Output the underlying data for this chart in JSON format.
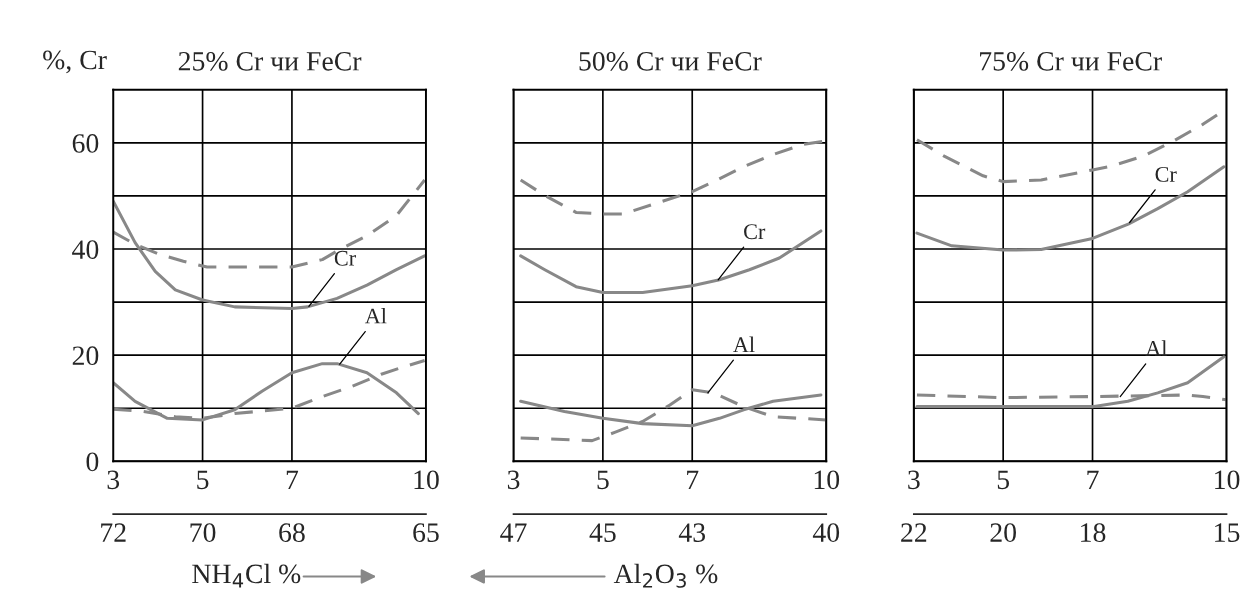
{
  "chart_data": [
    {
      "type": "line",
      "title": "25% Cr чи FeCr",
      "ylabel": "%, Cr",
      "xlabel": "NH$_{4}$Cl %",
      "xlim": [
        3,
        10
      ],
      "xticks": [
        3,
        5,
        7,
        10
      ],
      "x2lim": [
        72,
        65
      ],
      "x2ticks": [
        72,
        70,
        68,
        65
      ],
      "ylim": [
        0,
        70
      ],
      "yticks": [
        0,
        {
          "value": 10,
          "label": null
        },
        20,
        {
          "value": 30,
          "label": null
        },
        40,
        {
          "value": 50,
          "label": null
        },
        60
      ],
      "grid": true,
      "legend": false,
      "series": [
        {
          "color": "#888888",
          "line_style": "solid",
          "x": [
            3,
            3.49,
            3.94,
            4.39,
            5,
            5.72,
            7,
            7.35,
            8.01,
            8.68,
            9.34,
            9.97
          ],
          "values": [
            49,
            41.2,
            35.8,
            32.3,
            30.4,
            29.1,
            28.8,
            29.1,
            30.7,
            33.2,
            36.1,
            38.7
          ]
        },
        {
          "color": "#888888",
          "line_style": "dashed",
          "x": [
            3,
            3.49,
            4.03,
            4.57,
            5.1,
            6.15,
            7,
            7.68,
            8.07,
            8.68,
            9.34,
            9.97
          ],
          "values": [
            43.2,
            40.9,
            39,
            37.7,
            36.6,
            36.6,
            36.6,
            38,
            39.9,
            42.5,
            46.3,
            53
          ]
        },
        {
          "color": "#888888",
          "line_style": "solid",
          "x": [
            3,
            3.49,
            4.21,
            5,
            5.72,
            6.33,
            7,
            7.68,
            8.01,
            8.68,
            9.34,
            9.83
          ],
          "values": [
            14.8,
            11.3,
            8.1,
            7.8,
            9.7,
            13.2,
            16.7,
            18.4,
            18.4,
            16.7,
            12.9,
            9
          ]
        },
        {
          "color": "#888888",
          "line_style": "dashed",
          "x": [
            3,
            3.67,
            4.39,
            5,
            5.72,
            7,
            7.68,
            8.34,
            9,
            9.43,
            9.97
          ],
          "values": [
            9.8,
            9.4,
            8.4,
            8.1,
            9,
            10,
            12.2,
            14.1,
            16.4,
            17.6,
            19
          ]
        }
      ],
      "annotations": [
        {
          "text": "Cr",
          "x": 7.38,
          "y": 29.2
        },
        {
          "text": "Al",
          "x": 8.07,
          "y": 18.3
        }
      ]
    },
    {
      "type": "line",
      "title": "50% Cr чи FeCr",
      "x2label": "Al$_{2}$O$_{3}$ %",
      "xlim": [
        3,
        10
      ],
      "xticks": [
        3,
        5,
        7,
        10
      ],
      "x2lim": [
        47,
        40
      ],
      "x2ticks": [
        47,
        45,
        43,
        40
      ],
      "ylim": [
        0,
        70
      ],
      "yticks": [
        0,
        {
          "value": 10,
          "label": null
        },
        20,
        {
          "value": 30,
          "label": null
        },
        40,
        {
          "value": 50,
          "label": null
        },
        60
      ],
      "tick_labels": "x",
      "grid": true,
      "legend": false,
      "series": [
        {
          "color": "#888888",
          "line_style": "dashed",
          "x": [
            3.16,
            3.7,
            4.4,
            5,
            5.45,
            6.15,
            7,
            7.48,
            8.15,
            8.81,
            9.48,
            10
          ],
          "values": [
            53,
            50.1,
            46.9,
            46.6,
            46.6,
            48.5,
            50.8,
            52.7,
            55.5,
            57.8,
            59.7,
            60.4
          ]
        },
        {
          "color": "#888888",
          "line_style": "solid",
          "x": [
            3.16,
            3.7,
            4.4,
            5,
            5.89,
            7,
            7.61,
            8.28,
            8.95,
            9.88
          ],
          "values": [
            38.7,
            36.1,
            32.9,
            31.8,
            31.8,
            33.1,
            34.2,
            36.1,
            38.3,
            43.4
          ]
        },
        {
          "color": "#888888",
          "line_style": "solid",
          "x": [
            3.16,
            4.14,
            5,
            5.89,
            7,
            7.61,
            8.15,
            8.81,
            9.88
          ],
          "values": [
            11.3,
            9.4,
            8.1,
            7.1,
            6.7,
            8.1,
            9.7,
            11.3,
            12.5
          ]
        },
        {
          "color": "#888888",
          "line_style": "dashed",
          "x": [
            3.16,
            4.76,
            5.28,
            5.89,
            6.5,
            7,
            7.48,
            8.15,
            8.81,
            10
          ],
          "values": [
            4.4,
            3.9,
            5.5,
            7.5,
            10.6,
            13.5,
            12.9,
            10.3,
            8.4,
            7.8
          ]
        }
      ],
      "annotations": [
        {
          "text": "Cr",
          "x": 7.58,
          "y": 34.2
        },
        {
          "text": "Al",
          "x": 7.35,
          "y": 12.9
        }
      ]
    },
    {
      "type": "line",
      "title": "75% Cr чи FeCr",
      "xlim": [
        3,
        10
      ],
      "xticks": [
        3,
        5,
        7,
        10
      ],
      "x2lim": [
        22,
        15
      ],
      "x2ticks": [
        22,
        20,
        18,
        15
      ],
      "ylim": [
        0,
        70
      ],
      "yticks": [
        0,
        {
          "value": 10,
          "label": null
        },
        20,
        {
          "value": 30,
          "label": null
        },
        40,
        {
          "value": 50,
          "label": null
        },
        60
      ],
      "tick_labels": "x",
      "grid": true,
      "legend": false,
      "series": [
        {
          "color": "#888888",
          "line_style": "dashed",
          "x": [
            3.07,
            3.68,
            4.55,
            5,
            5.85,
            7,
            7.46,
            8.13,
            8.8,
            9.47,
            9.94
          ],
          "values": [
            60.6,
            57.5,
            53.8,
            52.7,
            53,
            54.9,
            55.7,
            57.5,
            60.3,
            63.5,
            66.1
          ]
        },
        {
          "color": "#888888",
          "line_style": "solid",
          "x": [
            3.07,
            3.85,
            5,
            5.85,
            7,
            7.8,
            8.46,
            9.13,
            9.94
          ],
          "values": [
            43,
            40.6,
            39.8,
            39.9,
            42,
            44.7,
            47.6,
            50.8,
            55.5
          ]
        },
        {
          "color": "#888888",
          "line_style": "solid",
          "x": [
            3.07,
            5,
            7,
            7.79,
            8.46,
            9.13,
            9.94
          ],
          "values": [
            10.3,
            10.3,
            10.3,
            11.3,
            12.9,
            14.8,
            19.7
          ]
        },
        {
          "color": "#888888",
          "line_style": "dashed",
          "x": [
            3.07,
            5,
            7,
            8.46,
            9.13,
            9.47,
            10
          ],
          "values": [
            12.5,
            12,
            12.2,
            12.4,
            12.5,
            12.2,
            11.6
          ]
        }
      ],
      "annotations": [
        {
          "text": "Cr",
          "x": 7.83,
          "y": 45
        },
        {
          "text": "Al",
          "x": 7.62,
          "y": 12.2
        }
      ]
    }
  ]
}
